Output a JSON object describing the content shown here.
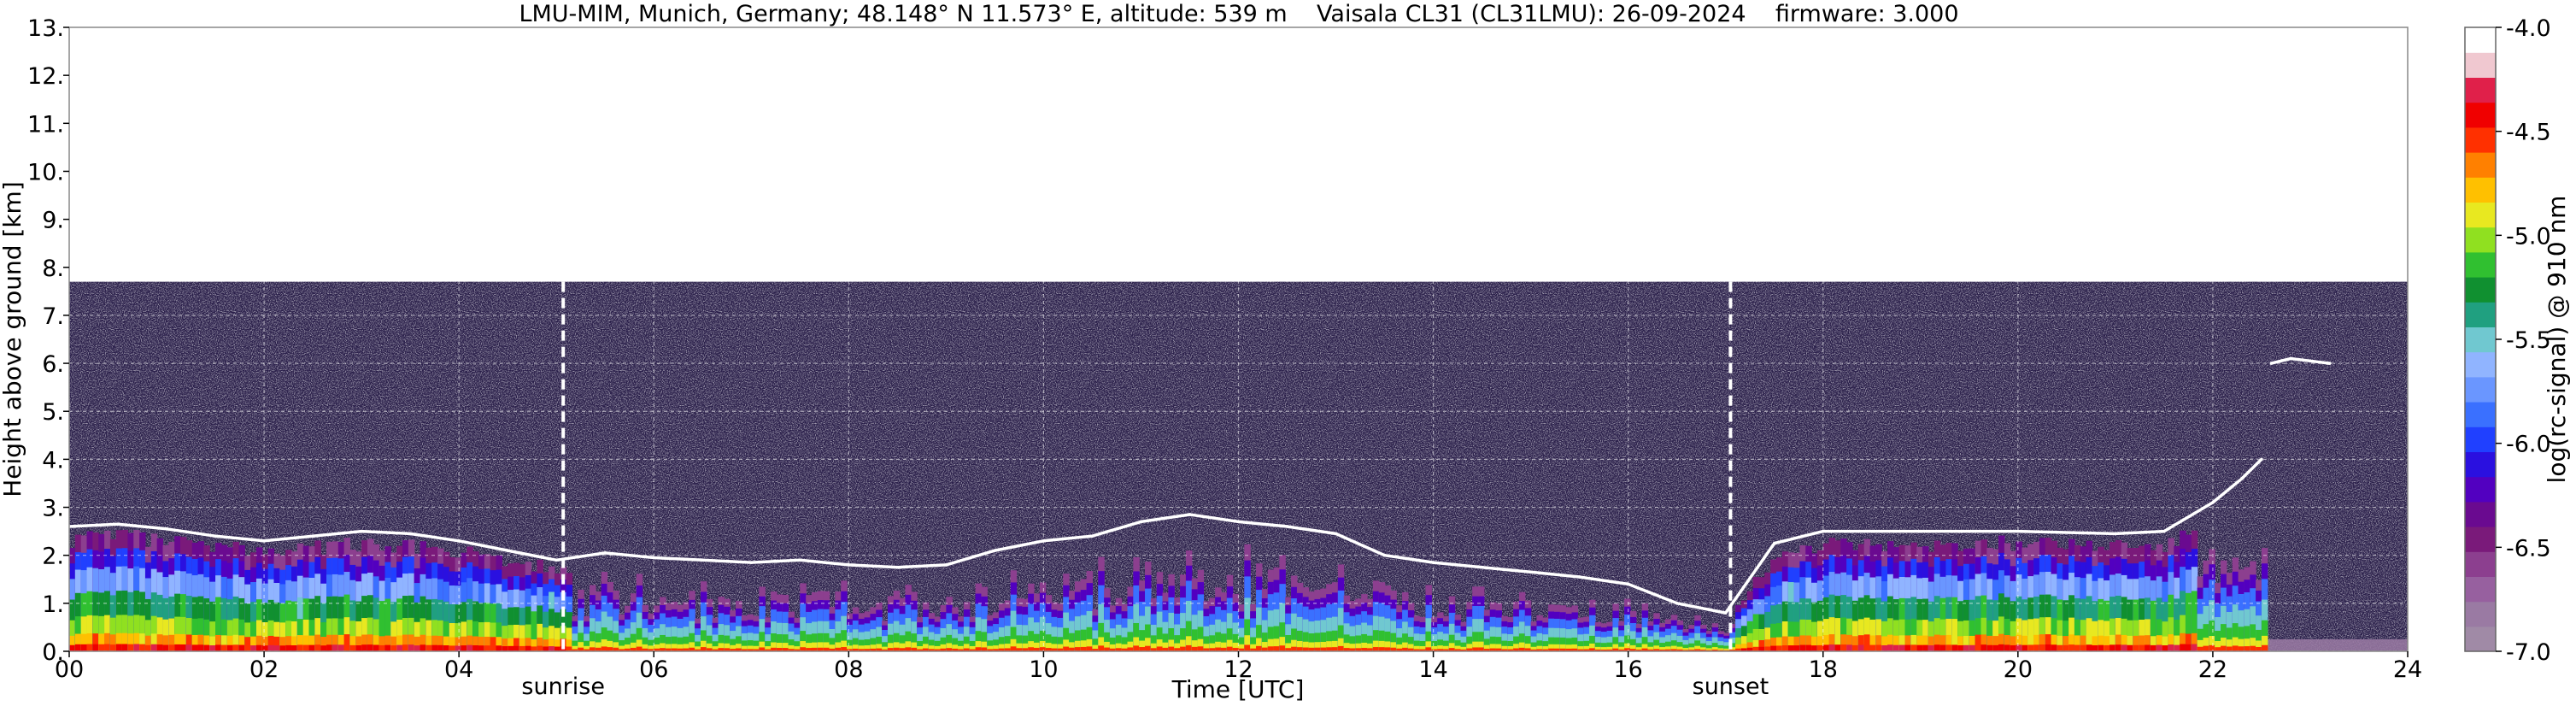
{
  "chart_data": {
    "type": "heatmap",
    "title": "LMU-MIM, Munich, Germany; 48.148° N 11.573° E, altitude: 539 m    Vaisala CL31 (CL31LMU): 26-09-2024    firmware: 3.000",
    "xlabel": "Time [UTC]",
    "ylabel": "Height above ground [km]",
    "xlim": [
      0,
      24
    ],
    "ylim": [
      0,
      13
    ],
    "x_ticks": [
      0,
      2,
      4,
      6,
      8,
      10,
      12,
      14,
      16,
      18,
      20,
      22,
      24
    ],
    "x_tick_labels": [
      "00",
      "02",
      "04",
      "06",
      "08",
      "10",
      "12",
      "14",
      "16",
      "18",
      "20",
      "22",
      "24"
    ],
    "y_ticks": [
      0,
      1,
      2,
      3,
      4,
      5,
      6,
      7,
      8,
      9,
      10,
      11,
      12,
      13
    ],
    "y_tick_labels": [
      "0.",
      "1.",
      "2.",
      "3.",
      "4.",
      "5.",
      "6.",
      "7.",
      "8.",
      "9.",
      "10.",
      "11.",
      "12.",
      "13."
    ],
    "grid": true,
    "data_ceiling_km": 7.7,
    "annotations": [
      {
        "label": "sunrise",
        "x": 5.07
      },
      {
        "label": "sunset",
        "x": 17.05
      }
    ],
    "colorbar": {
      "label": "log(rc-signal) @ 910 nm",
      "range": [
        -7.0,
        -4.0
      ],
      "ticks": [
        -4.0,
        -4.5,
        -5.0,
        -5.5,
        -6.0,
        -6.5,
        -7.0
      ],
      "tick_labels": [
        "-4.0",
        "-4.5",
        "-5.0",
        "-5.5",
        "-6.0",
        "-6.5",
        "-7.0"
      ],
      "colors": [
        "#a08aa6",
        "#9a7aa3",
        "#97609f",
        "#8c3f8f",
        "#7a1a7a",
        "#6a0a90",
        "#5200c0",
        "#2a10e0",
        "#2040ff",
        "#3a70ff",
        "#6a96ff",
        "#90b4ff",
        "#70c8d0",
        "#20a080",
        "#109030",
        "#30c030",
        "#90e020",
        "#e8e820",
        "#ffc000",
        "#ff8000",
        "#ff3000",
        "#f00000",
        "#e0204a",
        "#f0c8d0",
        "#ffffff"
      ]
    },
    "series": [
      {
        "points": [
          [
            0,
            2.6
          ],
          [
            0.5,
            2.65
          ],
          [
            1,
            2.55
          ],
          [
            1.5,
            2.4
          ],
          [
            2,
            2.3
          ],
          [
            2.5,
            2.4
          ],
          [
            3,
            2.5
          ],
          [
            3.5,
            2.45
          ],
          [
            4,
            2.3
          ],
          [
            4.5,
            2.1
          ],
          [
            5,
            1.9
          ],
          [
            5.5,
            2.05
          ],
          [
            6,
            1.95
          ],
          [
            6.5,
            1.9
          ],
          [
            7,
            1.85
          ],
          [
            7.5,
            1.9
          ],
          [
            8,
            1.8
          ],
          [
            8.5,
            1.75
          ],
          [
            9,
            1.8
          ],
          [
            9.5,
            2.1
          ],
          [
            10,
            2.3
          ],
          [
            10.5,
            2.4
          ],
          [
            11,
            2.7
          ],
          [
            11.5,
            2.85
          ],
          [
            12,
            2.7
          ],
          [
            12.5,
            2.6
          ],
          [
            13,
            2.45
          ],
          [
            13.5,
            2.0
          ],
          [
            14,
            1.85
          ],
          [
            14.5,
            1.75
          ],
          [
            15,
            1.65
          ],
          [
            15.5,
            1.55
          ],
          [
            16,
            1.4
          ],
          [
            16.5,
            1.0
          ],
          [
            17,
            0.8
          ],
          [
            17.5,
            2.25
          ],
          [
            18,
            2.5
          ],
          [
            19,
            2.5
          ],
          [
            20,
            2.5
          ],
          [
            21,
            2.45
          ],
          [
            21.5,
            2.5
          ],
          [
            22,
            3.1
          ],
          [
            22.3,
            3.6
          ],
          [
            22.5,
            4.0
          ]
        ]
      },
      {
        "points": [
          [
            22.6,
            6.0
          ],
          [
            22.8,
            6.1
          ],
          [
            23,
            6.05
          ],
          [
            23.2,
            6.0
          ]
        ]
      }
    ]
  }
}
